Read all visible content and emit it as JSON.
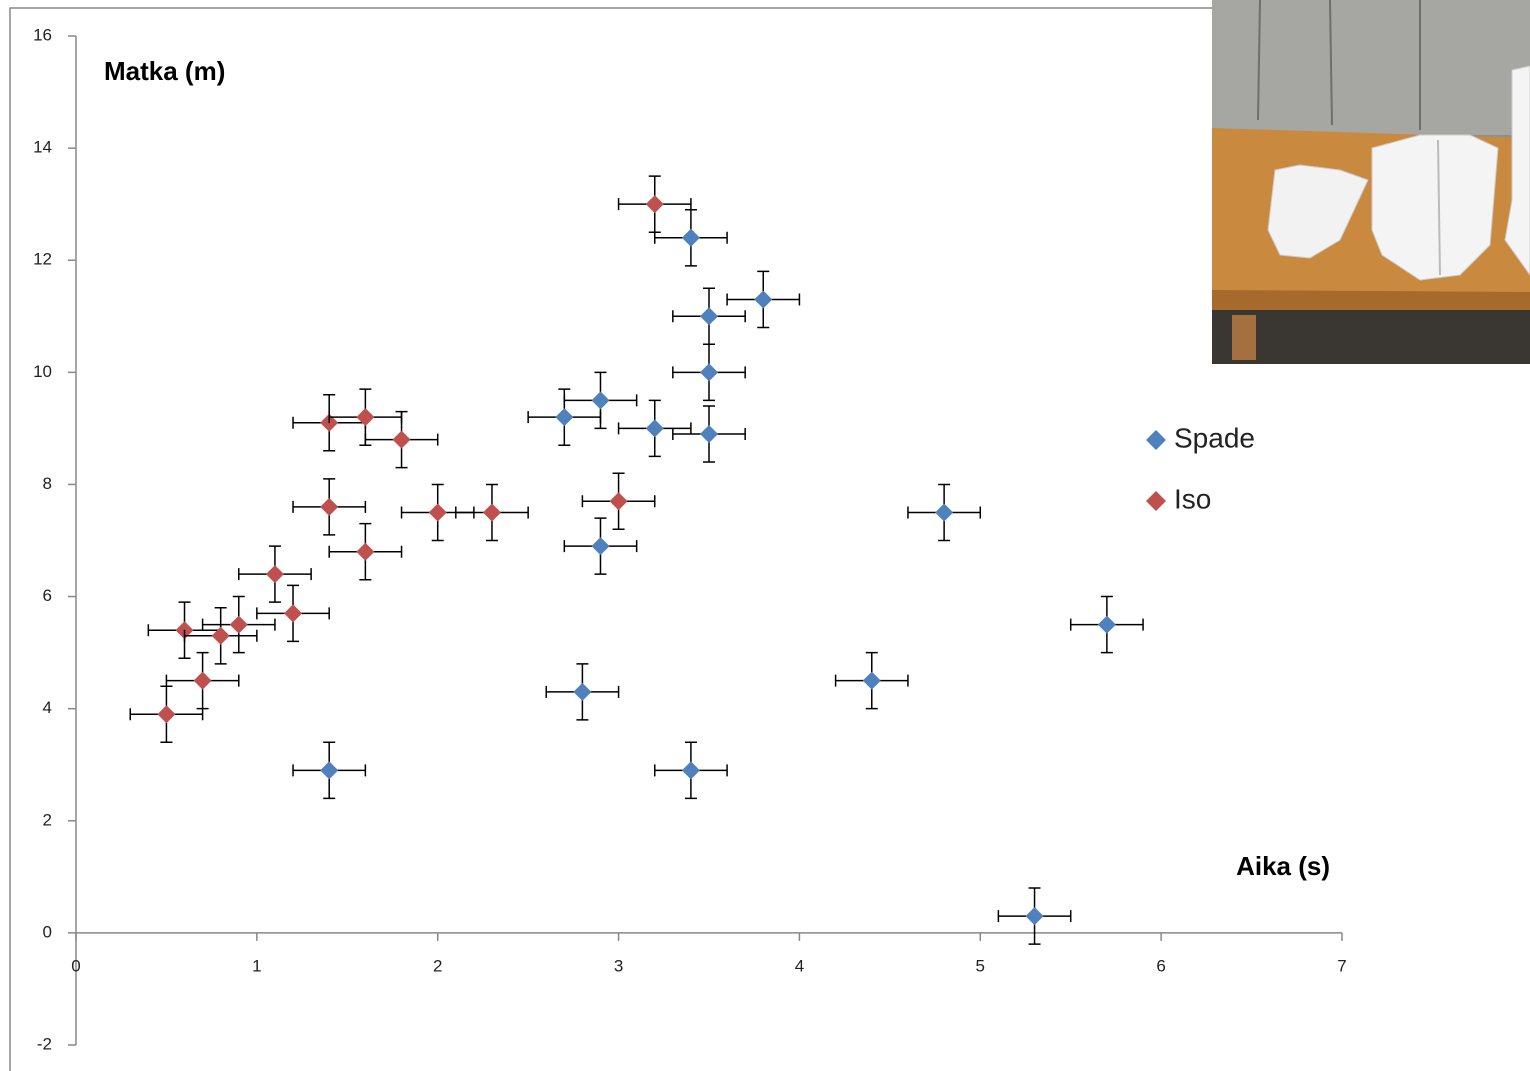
{
  "chart_data": {
    "type": "scatter",
    "y_label": "Matka (m)",
    "x_label": "Aika (s)",
    "xlim": [
      0,
      7
    ],
    "ylim": [
      -2,
      16
    ],
    "xticks": [
      0,
      1,
      2,
      3,
      4,
      5,
      6,
      7
    ],
    "yticks": [
      -2,
      0,
      2,
      4,
      6,
      8,
      10,
      12,
      14,
      16
    ],
    "legend": "right",
    "series": [
      {
        "name": "Spade",
        "color": "#4f81bd",
        "xerr": 0.2,
        "yerr": 0.5,
        "x": [
          3.4,
          3.8,
          3.5,
          3.5,
          2.9,
          2.7,
          3.2,
          3.5,
          4.8,
          2.9,
          5.7,
          4.4,
          2.8,
          1.4,
          3.4,
          5.3
        ],
        "y": [
          12.4,
          11.3,
          11.0,
          10.0,
          9.5,
          9.2,
          9.0,
          8.9,
          7.5,
          6.9,
          5.5,
          4.5,
          4.3,
          2.9,
          2.9,
          0.3
        ]
      },
      {
        "name": "Iso",
        "color": "#c0504d",
        "xerr": 0.2,
        "yerr": 0.5,
        "x": [
          3.2,
          1.4,
          1.6,
          1.8,
          1.4,
          2.0,
          2.3,
          3.0,
          1.6,
          1.1,
          1.2,
          0.6,
          0.8,
          0.9,
          0.7,
          0.5
        ],
        "y": [
          13.0,
          9.1,
          9.2,
          8.8,
          7.6,
          7.5,
          7.5,
          7.7,
          6.8,
          6.4,
          5.7,
          5.4,
          5.3,
          5.5,
          4.5,
          3.9
        ]
      }
    ]
  }
}
